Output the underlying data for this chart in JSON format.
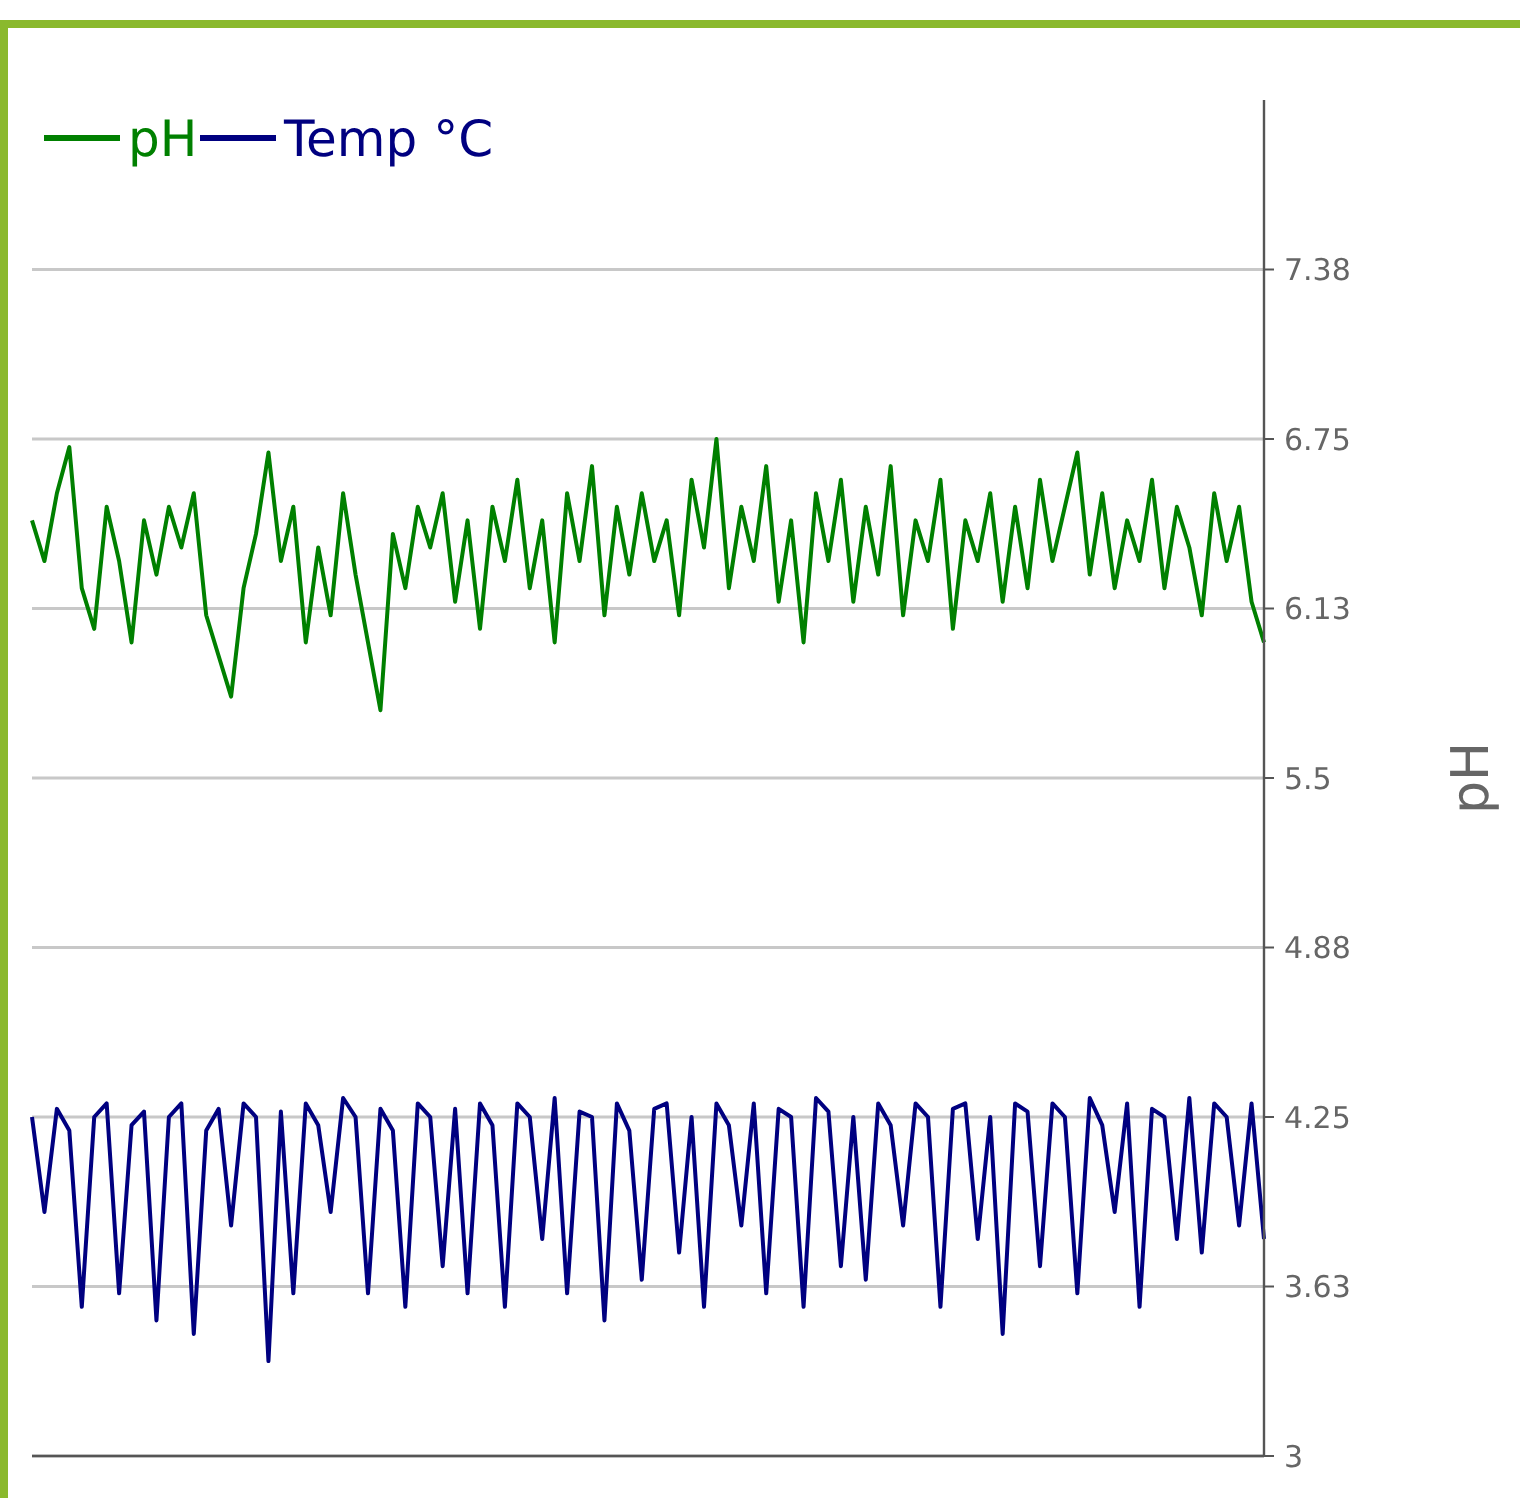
{
  "chart_data": {
    "type": "line",
    "ylabel": "pH",
    "legend": "top left",
    "grid": "y",
    "tick_labels": "y",
    "line_style": "solid",
    "marker": "none",
    "categories": [
      null,
      null,
      null,
      null,
      null,
      null,
      null,
      null,
      null,
      null,
      null,
      null,
      null,
      null,
      null,
      null,
      null,
      null,
      null,
      null,
      null,
      null,
      null,
      null,
      null,
      null,
      null,
      null,
      null,
      null,
      null,
      null,
      null,
      null,
      null,
      null,
      null,
      null,
      null,
      null,
      null,
      null,
      null,
      null,
      null,
      null,
      null,
      null,
      null,
      null,
      null,
      null,
      null,
      null,
      null,
      null,
      null,
      null,
      null,
      null,
      null,
      null,
      null,
      null,
      null,
      null,
      null,
      null,
      null,
      null,
      null,
      null,
      null,
      null,
      null,
      null,
      null,
      null,
      null,
      null,
      null,
      null,
      null,
      null,
      null,
      null,
      null,
      null,
      null,
      null,
      null,
      null,
      null,
      null,
      null,
      null,
      null,
      null,
      null,
      null
    ],
    "ylim": [
      3,
      8
    ],
    "yticks": [
      3,
      {
        "value": 3.625,
        "label": "3.63"
      },
      4.25,
      {
        "value": 4.875,
        "label": "4.88"
      },
      5.5,
      {
        "value": 6.125,
        "label": "6.13"
      },
      6.75,
      {
        "value": 7.375,
        "label": "7.38"
      }
    ],
    "series": [
      {
        "name": "pH",
        "color": "#008000",
        "values": [
          6.45,
          6.3,
          6.55,
          6.72,
          6.2,
          6.05,
          6.5,
          6.3,
          6.0,
          6.45,
          6.25,
          6.5,
          6.35,
          6.55,
          6.1,
          5.95,
          5.8,
          6.2,
          6.4,
          6.7,
          6.3,
          6.5,
          6.0,
          6.35,
          6.1,
          6.55,
          6.25,
          6.0,
          5.75,
          6.4,
          6.2,
          6.5,
          6.35,
          6.55,
          6.15,
          6.45,
          6.05,
          6.5,
          6.3,
          6.6,
          6.2,
          6.45,
          6.0,
          6.55,
          6.3,
          6.65,
          6.1,
          6.5,
          6.25,
          6.55,
          6.3,
          6.45,
          6.1,
          6.6,
          6.35,
          6.75,
          6.2,
          6.5,
          6.3,
          6.65,
          6.15,
          6.45,
          6.0,
          6.55,
          6.3,
          6.6,
          6.15,
          6.5,
          6.25,
          6.65,
          6.1,
          6.45,
          6.3,
          6.6,
          6.05,
          6.45,
          6.3,
          6.55,
          6.15,
          6.5,
          6.2,
          6.6,
          6.3,
          6.5,
          6.7,
          6.25,
          6.55,
          6.2,
          6.45,
          6.3,
          6.6,
          6.2,
          6.5,
          6.35,
          6.1,
          6.55,
          6.3,
          6.5,
          6.15,
          6.0
        ]
      },
      {
        "name": "Temp °C",
        "color": "#000080",
        "values": [
          4.25,
          3.9,
          4.28,
          4.2,
          3.55,
          4.25,
          4.3,
          3.6,
          4.22,
          4.27,
          3.5,
          4.25,
          4.3,
          3.45,
          4.2,
          4.28,
          3.85,
          4.3,
          4.25,
          3.35,
          4.27,
          3.6,
          4.3,
          4.22,
          3.9,
          4.32,
          4.25,
          3.6,
          4.28,
          4.2,
          3.55,
          4.3,
          4.25,
          3.7,
          4.28,
          3.6,
          4.3,
          4.22,
          3.55,
          4.3,
          4.25,
          3.8,
          4.32,
          3.6,
          4.27,
          4.25,
          3.5,
          4.3,
          4.2,
          3.65,
          4.28,
          4.3,
          3.75,
          4.25,
          3.55,
          4.3,
          4.22,
          3.85,
          4.3,
          3.6,
          4.28,
          4.25,
          3.55,
          4.32,
          4.27,
          3.7,
          4.25,
          3.65,
          4.3,
          4.22,
          3.85,
          4.3,
          4.25,
          3.55,
          4.28,
          4.3,
          3.8,
          4.25,
          3.45,
          4.3,
          4.27,
          3.7,
          4.3,
          4.25,
          3.6,
          4.32,
          4.22,
          3.9,
          4.3,
          3.55,
          4.28,
          4.25,
          3.8,
          4.32,
          3.75,
          4.3,
          4.25,
          3.85,
          4.3,
          3.8
        ]
      }
    ]
  }
}
